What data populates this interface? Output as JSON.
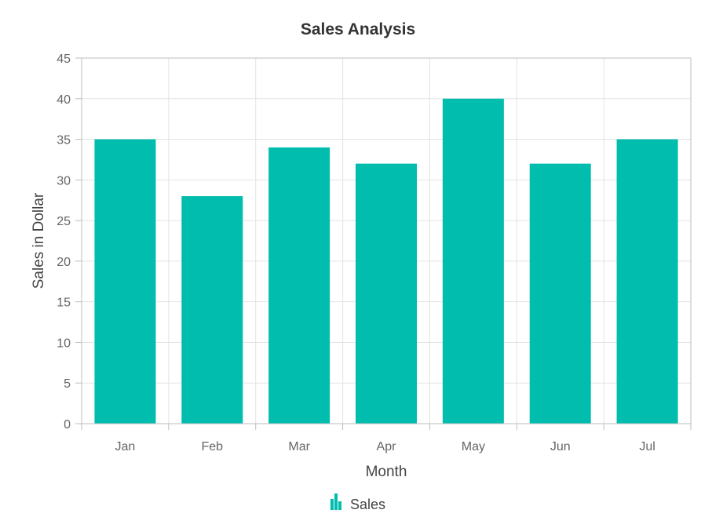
{
  "chart_data": {
    "type": "bar",
    "title": "Sales Analysis",
    "xlabel": "Month",
    "ylabel": "Sales in Dollar",
    "categories": [
      "Jan",
      "Feb",
      "Mar",
      "Apr",
      "May",
      "Jun",
      "Jul"
    ],
    "series": [
      {
        "name": "Sales",
        "values": [
          35,
          28,
          34,
          32,
          40,
          32,
          35
        ]
      }
    ],
    "ylim": [
      0,
      45
    ],
    "yticks": [
      0,
      5,
      10,
      15,
      20,
      25,
      30,
      35,
      40,
      45
    ],
    "grid": true,
    "legend_position": "bottom-center",
    "colors": {
      "bar": "#00BDAE",
      "grid": "#e3e3e3",
      "axis": "#bdbdbd"
    }
  }
}
